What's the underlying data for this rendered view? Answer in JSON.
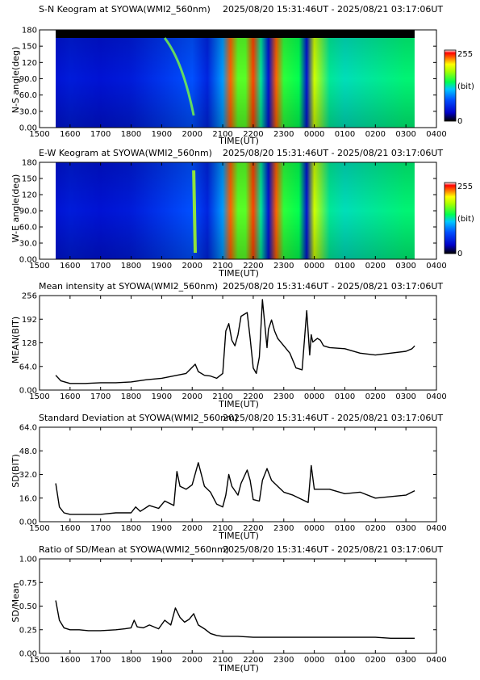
{
  "date_range": "2025/08/20 15:31:46UT - 2025/08/21 03:17:06UT",
  "x_ticks": [
    "1500",
    "1600",
    "1700",
    "1800",
    "1900",
    "2000",
    "2100",
    "2200",
    "2300",
    "0000",
    "0100",
    "0200",
    "0300",
    "0400"
  ],
  "x_label": "TIME(UT)",
  "colors": {
    "axis": "#000000",
    "line": "#000000",
    "keo_bg": "#0a33d6"
  },
  "chart_data": [
    {
      "type": "heatmap",
      "title": "S-N Keogram at SYOWA(WMI2_560nm)",
      "ylabel": "N-S angle(deg)",
      "y_ticks": [
        "0.00",
        "30.0",
        "60.0",
        "90.0",
        "120",
        "150",
        "180"
      ],
      "ylim": [
        0,
        180
      ],
      "colorbar": {
        "min_label": "0",
        "max_label": "255",
        "unit_label": "(bit)"
      },
      "x_data_range": [
        "15:31:46",
        "03:17:06"
      ],
      "intensity_by_hour": [
        {
          "time": "1530",
          "v": 40
        },
        {
          "time": "1600",
          "v": 45
        },
        {
          "time": "1700",
          "v": 40
        },
        {
          "time": "1800",
          "v": 45
        },
        {
          "time": "1900",
          "v": 60
        },
        {
          "time": "2000",
          "v": 75
        },
        {
          "time": "2030",
          "v": 50
        },
        {
          "time": "2100",
          "v": 100
        },
        {
          "time": "2115",
          "v": 230
        },
        {
          "time": "2130",
          "v": 160
        },
        {
          "time": "2145",
          "v": 160
        },
        {
          "time": "2200",
          "v": 235
        },
        {
          "time": "2215",
          "v": 130
        },
        {
          "time": "2230",
          "v": 40
        },
        {
          "time": "2245",
          "v": 230
        },
        {
          "time": "2300",
          "v": 150
        },
        {
          "time": "2330",
          "v": 140
        },
        {
          "time": "2345",
          "v": 40
        },
        {
          "time": "0000",
          "v": 190
        },
        {
          "time": "0030",
          "v": 130
        },
        {
          "time": "0100",
          "v": 125
        },
        {
          "time": "0200",
          "v": 130
        },
        {
          "time": "0300",
          "v": 135
        }
      ]
    },
    {
      "type": "heatmap",
      "title": "E-W Keogram at SYOWA(WMI2_560nm)",
      "ylabel": "W-E angle(deg)",
      "y_ticks": [
        "0.00",
        "30.0",
        "60.0",
        "90.0",
        "120",
        "150",
        "180"
      ],
      "ylim": [
        0,
        180
      ],
      "colorbar": {
        "min_label": "0",
        "max_label": "255",
        "unit_label": "(bit)"
      },
      "x_data_range": [
        "15:31:46",
        "03:17:06"
      ]
    },
    {
      "type": "line",
      "title": "Mean intensity at SYOWA(WMI2_560nm)",
      "ylabel": "MEAN(BIT)",
      "y_ticks": [
        "0.00",
        "64.0",
        "128",
        "192",
        "256"
      ],
      "ylim": [
        0,
        256
      ],
      "x_hours": [
        15.53,
        15.7,
        16.0,
        16.5,
        17.0,
        17.5,
        18.0,
        18.5,
        19.0,
        19.5,
        19.8,
        20.1,
        20.2,
        20.4,
        20.6,
        20.8,
        21.0,
        21.1,
        21.2,
        21.3,
        21.4,
        21.5,
        21.6,
        21.8,
        21.9,
        22.0,
        22.1,
        22.2,
        22.3,
        22.45,
        22.5,
        22.6,
        22.7,
        22.8,
        22.9,
        23.0,
        23.2,
        23.4,
        23.6,
        23.75,
        23.85,
        23.9,
        23.95,
        24.1,
        24.2,
        24.3,
        24.5,
        25.0,
        25.5,
        26.0,
        26.5,
        27.0,
        27.2,
        27.29
      ],
      "values": [
        40,
        25,
        18,
        18,
        20,
        20,
        22,
        28,
        32,
        40,
        45,
        70,
        50,
        40,
        38,
        32,
        45,
        160,
        180,
        135,
        120,
        150,
        200,
        210,
        140,
        60,
        45,
        90,
        245,
        115,
        165,
        190,
        160,
        140,
        130,
        120,
        100,
        60,
        55,
        215,
        95,
        150,
        130,
        140,
        135,
        120,
        115,
        112,
        100,
        95,
        100,
        105,
        112,
        120
      ]
    },
    {
      "type": "line",
      "title": "Standard Deviation at SYOWA(WMI2_560nm)",
      "ylabel": "SD(BIT)",
      "y_ticks": [
        "0.00",
        "16.0",
        "32.0",
        "48.0",
        "64.0"
      ],
      "ylim": [
        0,
        64
      ],
      "x_hours": [
        15.53,
        15.65,
        15.8,
        16.0,
        16.5,
        17.0,
        17.5,
        18.0,
        18.15,
        18.3,
        18.6,
        18.9,
        19.1,
        19.4,
        19.5,
        19.6,
        19.8,
        20.0,
        20.2,
        20.4,
        20.6,
        20.8,
        21.0,
        21.1,
        21.2,
        21.3,
        21.5,
        21.6,
        21.8,
        21.9,
        22.0,
        22.2,
        22.3,
        22.45,
        22.6,
        22.8,
        23.0,
        23.3,
        23.6,
        23.8,
        23.9,
        24.0,
        24.2,
        24.5,
        25.0,
        25.5,
        26.0,
        26.5,
        27.0,
        27.29
      ],
      "values": [
        26,
        10,
        6,
        5,
        5,
        5,
        6,
        6,
        10,
        7,
        11,
        9,
        14,
        11,
        34,
        24,
        22,
        25,
        40,
        24,
        20,
        12,
        10,
        18,
        32,
        24,
        18,
        26,
        35,
        28,
        15,
        14,
        28,
        36,
        28,
        24,
        20,
        18,
        15,
        13,
        38,
        22,
        22,
        22,
        19,
        20,
        16,
        17,
        18,
        21
      ]
    },
    {
      "type": "line",
      "title": "Ratio of SD/Mean at SYOWA(WMI2_560nm)",
      "ylabel": "SD/Mean",
      "y_ticks": [
        "0.00",
        "0.25",
        "0.50",
        "0.75",
        "1.00"
      ],
      "ylim": [
        0,
        1
      ],
      "x_hours": [
        15.53,
        15.65,
        15.8,
        16.0,
        16.3,
        16.6,
        17.0,
        17.5,
        17.8,
        18.0,
        18.1,
        18.2,
        18.4,
        18.6,
        18.9,
        19.1,
        19.3,
        19.45,
        19.6,
        19.75,
        19.9,
        20.05,
        20.2,
        20.4,
        20.6,
        20.8,
        21.0,
        21.5,
        22.0,
        22.5,
        23.0,
        23.5,
        24.0,
        24.5,
        25.0,
        25.5,
        26.0,
        26.5,
        27.0,
        27.29
      ],
      "values": [
        0.56,
        0.35,
        0.27,
        0.25,
        0.25,
        0.24,
        0.24,
        0.25,
        0.26,
        0.27,
        0.35,
        0.28,
        0.27,
        0.3,
        0.26,
        0.35,
        0.3,
        0.48,
        0.38,
        0.33,
        0.36,
        0.42,
        0.3,
        0.26,
        0.21,
        0.19,
        0.18,
        0.18,
        0.17,
        0.17,
        0.17,
        0.17,
        0.17,
        0.17,
        0.17,
        0.17,
        0.17,
        0.16,
        0.16,
        0.16
      ]
    }
  ]
}
